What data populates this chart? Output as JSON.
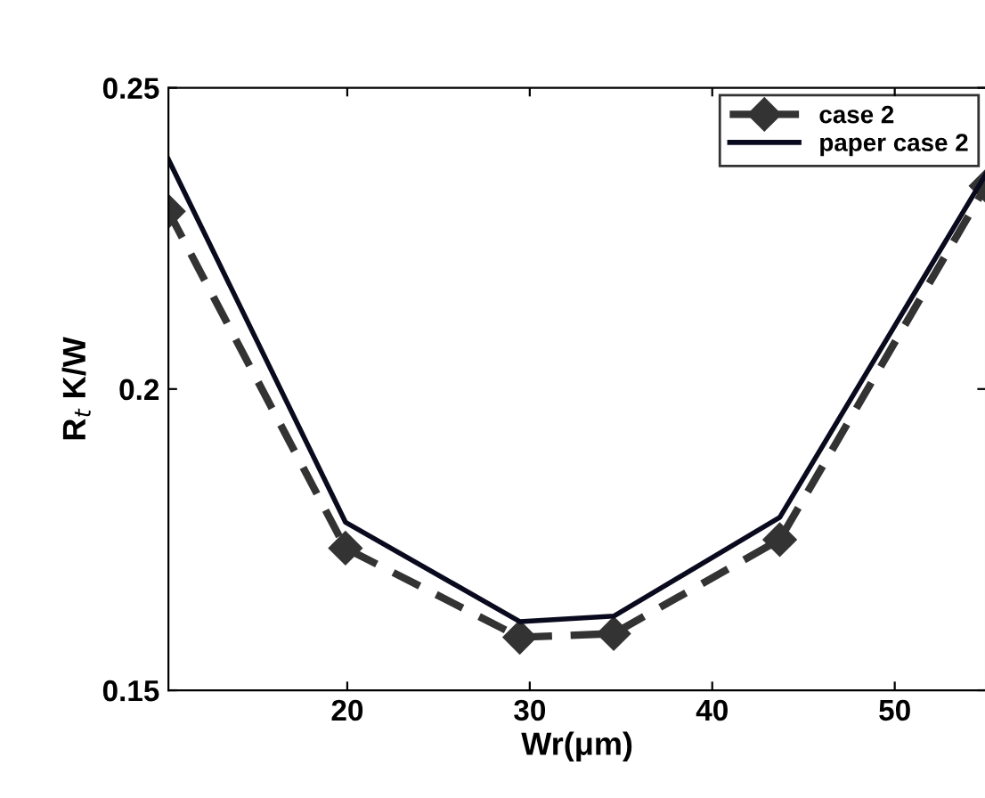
{
  "chart_data": {
    "type": "line",
    "xlabel": "Wr(μm)",
    "ylabel": "R$_{t}$ K/W",
    "x": [
      10.2,
      19.9,
      29.45,
      34.6,
      43.7,
      55
    ],
    "series": [
      {
        "name": "case 2",
        "color": "#333333",
        "marker": "diamond",
        "line_style": "dashed",
        "values": [
          0.2295,
          0.1736,
          0.1588,
          0.1594,
          0.175,
          0.2337
        ]
      },
      {
        "name": "paper case 2",
        "color": "#0a0a1e",
        "marker": "none",
        "line_style": "solid",
        "values": [
          0.2381,
          0.1779,
          0.1614,
          0.1623,
          0.1787,
          0.2357
        ]
      }
    ],
    "xlim": [
      10.2,
      55
    ],
    "xticks": [
      20,
      30,
      40,
      50
    ],
    "ylim": [
      0.15,
      0.25
    ],
    "yticks": [
      0.15,
      0.2,
      0.25
    ],
    "grid": false,
    "legend": "top right"
  }
}
